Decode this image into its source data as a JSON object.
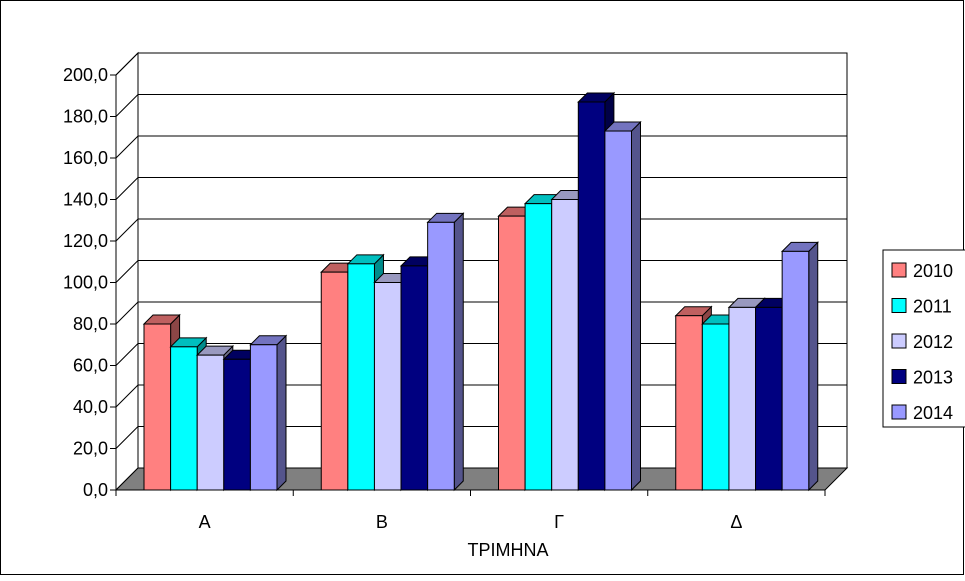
{
  "chart_data": {
    "type": "bar",
    "title": "",
    "xlabel": "ΤΡΙΜΗΝΑ",
    "ylabel": "",
    "categories": [
      "Α",
      "Β",
      "Γ",
      "Δ"
    ],
    "ylim": [
      0,
      200
    ],
    "yticks": [
      "0,0",
      "20,0",
      "40,0",
      "60,0",
      "80,0",
      "100,0",
      "120,0",
      "140,0",
      "160,0",
      "180,0",
      "200,0"
    ],
    "grid": true,
    "legend_position": "right",
    "style": "3d-clustered-column",
    "series": [
      {
        "name": "2010",
        "color": "#FF8080",
        "values": [
          80,
          105,
          132,
          84
        ]
      },
      {
        "name": "2011",
        "color": "#00FFFF",
        "values": [
          69,
          109,
          138,
          80
        ]
      },
      {
        "name": "2012",
        "color": "#CCCCFF",
        "values": [
          65,
          100,
          140,
          88
        ]
      },
      {
        "name": "2013",
        "color": "#000080",
        "values": [
          63,
          108,
          187,
          88
        ]
      },
      {
        "name": "2014",
        "color": "#9999FF",
        "values": [
          70,
          129,
          173,
          115
        ]
      }
    ]
  }
}
